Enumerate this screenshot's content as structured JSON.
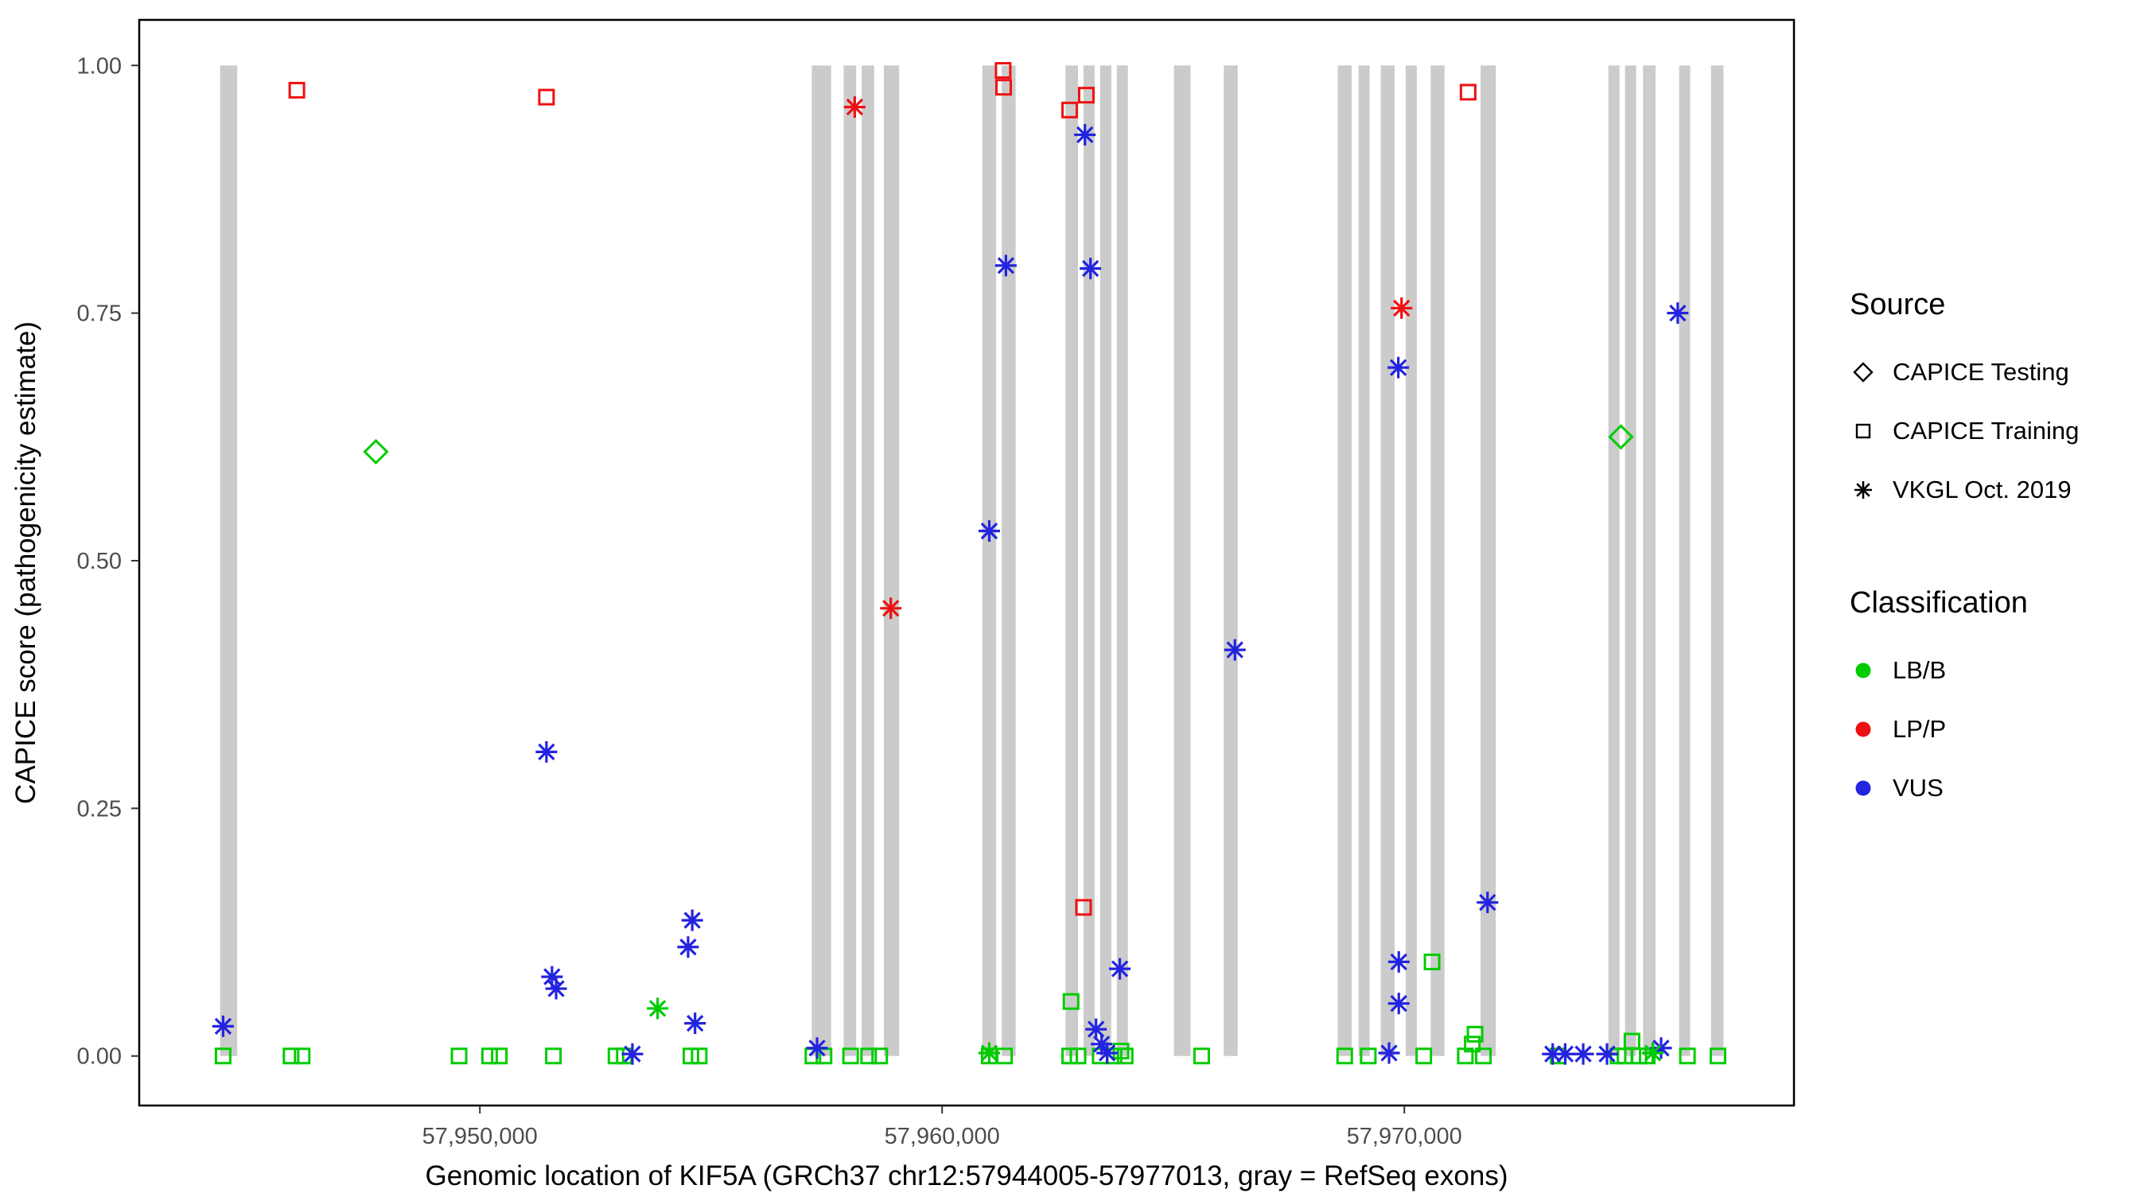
{
  "colors": {
    "LB/B": "#00cc00",
    "LP/P": "#ee1111",
    "VUS": "#2323e0",
    "exon": "#cbcbcb",
    "axis_text": "#4d4d4d",
    "axis_title": "#000000"
  },
  "chart_data": {
    "type": "scatter",
    "title": "",
    "xlabel": "Genomic location of KIF5A (GRCh37 chr12:57944005-57977013, gray = RefSeq exons)",
    "ylabel": "CAPICE score (pathogenicity estimate)",
    "xlim": [
      57942630,
      57978430
    ],
    "ylim": [
      -0.05,
      1.046
    ],
    "grid": false,
    "legend_position": "right",
    "x_ticks": [
      {
        "value": 57950000,
        "label": "57,950,000"
      },
      {
        "value": 57960000,
        "label": "57,960,000"
      },
      {
        "value": 57970000,
        "label": "57,970,000"
      }
    ],
    "y_ticks": [
      {
        "value": 0.0,
        "label": "0.00"
      },
      {
        "value": 0.25,
        "label": "0.25"
      },
      {
        "value": 0.5,
        "label": "0.50"
      },
      {
        "value": 0.75,
        "label": "0.75"
      },
      {
        "value": 1.0,
        "label": "1.00"
      }
    ],
    "exon_band": {
      "ymin": 0.0,
      "ymax": 1.0
    },
    "exons": [
      [
        57944380,
        57944750
      ],
      [
        57957180,
        57957600
      ],
      [
        57957870,
        57958140
      ],
      [
        57958260,
        57958530
      ],
      [
        57958740,
        57959070
      ],
      [
        57960870,
        57961170
      ],
      [
        57961290,
        57961590
      ],
      [
        57962670,
        57962940
      ],
      [
        57963060,
        57963300
      ],
      [
        57963420,
        57963660
      ],
      [
        57963780,
        57964020
      ],
      [
        57965015,
        57965375
      ],
      [
        57966095,
        57966395
      ],
      [
        57968560,
        57968860
      ],
      [
        57969010,
        57969250
      ],
      [
        57969490,
        57969790
      ],
      [
        57970030,
        57970270
      ],
      [
        57970570,
        57970870
      ],
      [
        57971650,
        57971980
      ],
      [
        57974415,
        57974655
      ],
      [
        57974775,
        57975015
      ],
      [
        57975165,
        57975435
      ],
      [
        57975945,
        57976185
      ],
      [
        57976635,
        57976905
      ]
    ],
    "series": [
      {
        "name": "CAPICE Testing - LB/B",
        "source": "CAPICE Testing",
        "shape": "diamond",
        "classification": "LB/B",
        "points": [
          [
            57947750,
            0.61
          ],
          [
            57974685,
            0.625
          ]
        ]
      },
      {
        "name": "CAPICE Training - LP/P",
        "source": "CAPICE Training",
        "shape": "square",
        "classification": "LP/P",
        "points": [
          [
            57946040,
            0.975
          ],
          [
            57951440,
            0.968
          ],
          [
            57961320,
            0.995
          ],
          [
            57961330,
            0.978
          ],
          [
            57962760,
            0.955
          ],
          [
            57963120,
            0.97
          ],
          [
            57963060,
            0.15
          ],
          [
            57971380,
            0.973
          ]
        ]
      },
      {
        "name": "CAPICE Training - LB/B",
        "source": "CAPICE Training",
        "shape": "square",
        "classification": "LB/B",
        "points": [
          [
            57944445,
            0.0
          ],
          [
            57945915,
            0.0
          ],
          [
            57946155,
            0.0
          ],
          [
            57949550,
            0.0
          ],
          [
            57950210,
            0.0
          ],
          [
            57950420,
            0.0
          ],
          [
            57951590,
            0.0
          ],
          [
            57952945,
            0.0
          ],
          [
            57953125,
            0.0
          ],
          [
            57954565,
            0.0
          ],
          [
            57954745,
            0.0
          ],
          [
            57957205,
            0.0
          ],
          [
            57957445,
            0.0
          ],
          [
            57958020,
            0.0
          ],
          [
            57958410,
            0.0
          ],
          [
            57958650,
            0.0
          ],
          [
            57961020,
            0.0
          ],
          [
            57961350,
            0.0
          ],
          [
            57962760,
            0.0
          ],
          [
            57962940,
            0.0
          ],
          [
            57962790,
            0.055
          ],
          [
            57963420,
            0.0
          ],
          [
            57963720,
            0.0
          ],
          [
            57963870,
            0.005
          ],
          [
            57963960,
            0.0
          ],
          [
            57965615,
            0.0
          ],
          [
            57968710,
            0.0
          ],
          [
            57969220,
            0.0
          ],
          [
            57970420,
            0.0
          ],
          [
            57970600,
            0.095
          ],
          [
            57971320,
            0.0
          ],
          [
            57971470,
            0.012
          ],
          [
            57971530,
            0.022
          ],
          [
            57971710,
            0.0
          ],
          [
            57973330,
            0.0
          ],
          [
            57974625,
            0.0
          ],
          [
            57974775,
            0.0
          ],
          [
            57974925,
            0.015
          ],
          [
            57975075,
            0.0
          ],
          [
            57975255,
            0.0
          ],
          [
            57976125,
            0.0
          ],
          [
            57976785,
            0.0
          ]
        ]
      },
      {
        "name": "VKGL Oct. 2019 - LP/P",
        "source": "VKGL Oct. 2019",
        "shape": "asterisk",
        "classification": "LP/P",
        "points": [
          [
            57958110,
            0.958
          ],
          [
            57958890,
            0.452
          ],
          [
            57969940,
            0.755
          ]
        ]
      },
      {
        "name": "VKGL Oct. 2019 - VUS",
        "source": "VKGL Oct. 2019",
        "shape": "asterisk",
        "classification": "VUS",
        "points": [
          [
            57944445,
            0.03
          ],
          [
            57951440,
            0.307
          ],
          [
            57951560,
            0.08
          ],
          [
            57951650,
            0.068
          ],
          [
            57953300,
            0.002
          ],
          [
            57954505,
            0.11
          ],
          [
            57954595,
            0.137
          ],
          [
            57954655,
            0.033
          ],
          [
            57957295,
            0.008
          ],
          [
            57961020,
            0.53
          ],
          [
            57961380,
            0.798
          ],
          [
            57963090,
            0.93
          ],
          [
            57963210,
            0.795
          ],
          [
            57963330,
            0.027
          ],
          [
            57963450,
            0.012
          ],
          [
            57963570,
            0.003
          ],
          [
            57963845,
            0.088
          ],
          [
            57966335,
            0.41
          ],
          [
            57969870,
            0.695
          ],
          [
            57969880,
            0.095
          ],
          [
            57969880,
            0.053
          ],
          [
            57969670,
            0.003
          ],
          [
            57971800,
            0.155
          ],
          [
            57973210,
            0.002
          ],
          [
            57973480,
            0.002
          ],
          [
            57973870,
            0.002
          ],
          [
            57974385,
            0.002
          ],
          [
            57975555,
            0.008
          ],
          [
            57975915,
            0.75
          ]
        ]
      },
      {
        "name": "VKGL Oct. 2019 - LB/B",
        "source": "VKGL Oct. 2019",
        "shape": "asterisk",
        "classification": "LB/B",
        "points": [
          [
            57953845,
            0.048
          ],
          [
            57961020,
            0.003
          ],
          [
            57975375,
            0.003
          ]
        ]
      }
    ]
  },
  "legend": {
    "source": {
      "title": "Source",
      "items": [
        {
          "shape": "diamond",
          "label": "CAPICE Testing"
        },
        {
          "shape": "square",
          "label": "CAPICE Training"
        },
        {
          "shape": "asterisk",
          "label": "VKGL Oct. 2019"
        }
      ]
    },
    "classification": {
      "title": "Classification",
      "items": [
        {
          "label": "LB/B",
          "color_key": "LB/B"
        },
        {
          "label": "LP/P",
          "color_key": "LP/P"
        },
        {
          "label": "VUS",
          "color_key": "VUS"
        }
      ]
    }
  }
}
